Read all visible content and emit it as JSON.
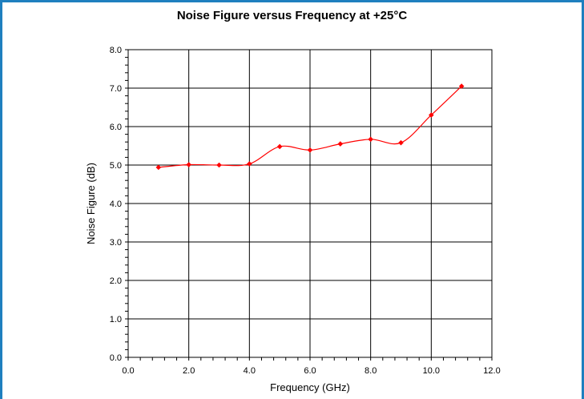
{
  "chart_data": {
    "type": "line",
    "title": "Noise Figure versus Frequency at +25°C",
    "xlabel": "Frequency (GHz)",
    "ylabel": "Noise Figure (dB)",
    "xlim": [
      0,
      12
    ],
    "ylim": [
      0,
      8
    ],
    "x_ticks": [
      "0.0",
      "2.0",
      "4.0",
      "6.0",
      "8.0",
      "10.0",
      "12.0"
    ],
    "y_ticks": [
      "0.0",
      "1.0",
      "2.0",
      "3.0",
      "4.0",
      "5.0",
      "6.0",
      "7.0",
      "8.0"
    ],
    "grid": true,
    "series": [
      {
        "color": "#ff0000",
        "x": [
          1,
          2,
          3,
          4,
          5,
          6,
          7,
          8,
          9,
          10,
          11
        ],
        "values": [
          4.94,
          5.01,
          5.0,
          5.03,
          5.48,
          5.39,
          5.55,
          5.67,
          5.58,
          6.3,
          7.05
        ]
      }
    ],
    "frame_color": "#1f7fbf"
  }
}
